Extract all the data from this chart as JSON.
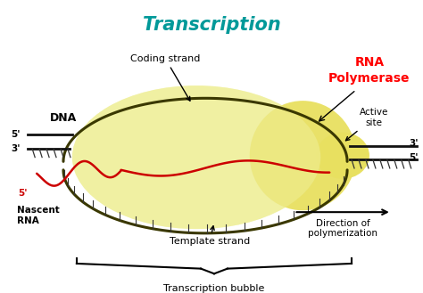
{
  "title": "Transcription",
  "title_color": "#009999",
  "title_fontsize": 15,
  "bg_color": "#ffffff",
  "bubble_color": "#f0f0a0",
  "polymerase_color": "#e8e060",
  "coding_strand_color": "#3a3800",
  "template_strand_color": "#3a3800",
  "rna_color": "#cc0000",
  "dna_strand_color": "#111111",
  "tick_color": "#333333",
  "labels": {
    "coding_strand": "Coding strand",
    "template_strand": "Template strand",
    "dna": "DNA",
    "nascent_rna": "Nascent\nRNA",
    "rna_polymerase": "RNA\nPolymerase",
    "active_site": "Active\nsite",
    "direction": "Direction of\npolymerization",
    "transcription_bubble": "Transcription bubble",
    "five_prime_top_left": "5'",
    "three_prime_top_left": "3'",
    "three_prime_right_top": "3'",
    "five_prime_right_bottom": "5'",
    "five_prime_rna": "5'"
  },
  "label_fontsize": 8,
  "small_fontsize": 7.5,
  "rna_poly_fontsize": 10
}
